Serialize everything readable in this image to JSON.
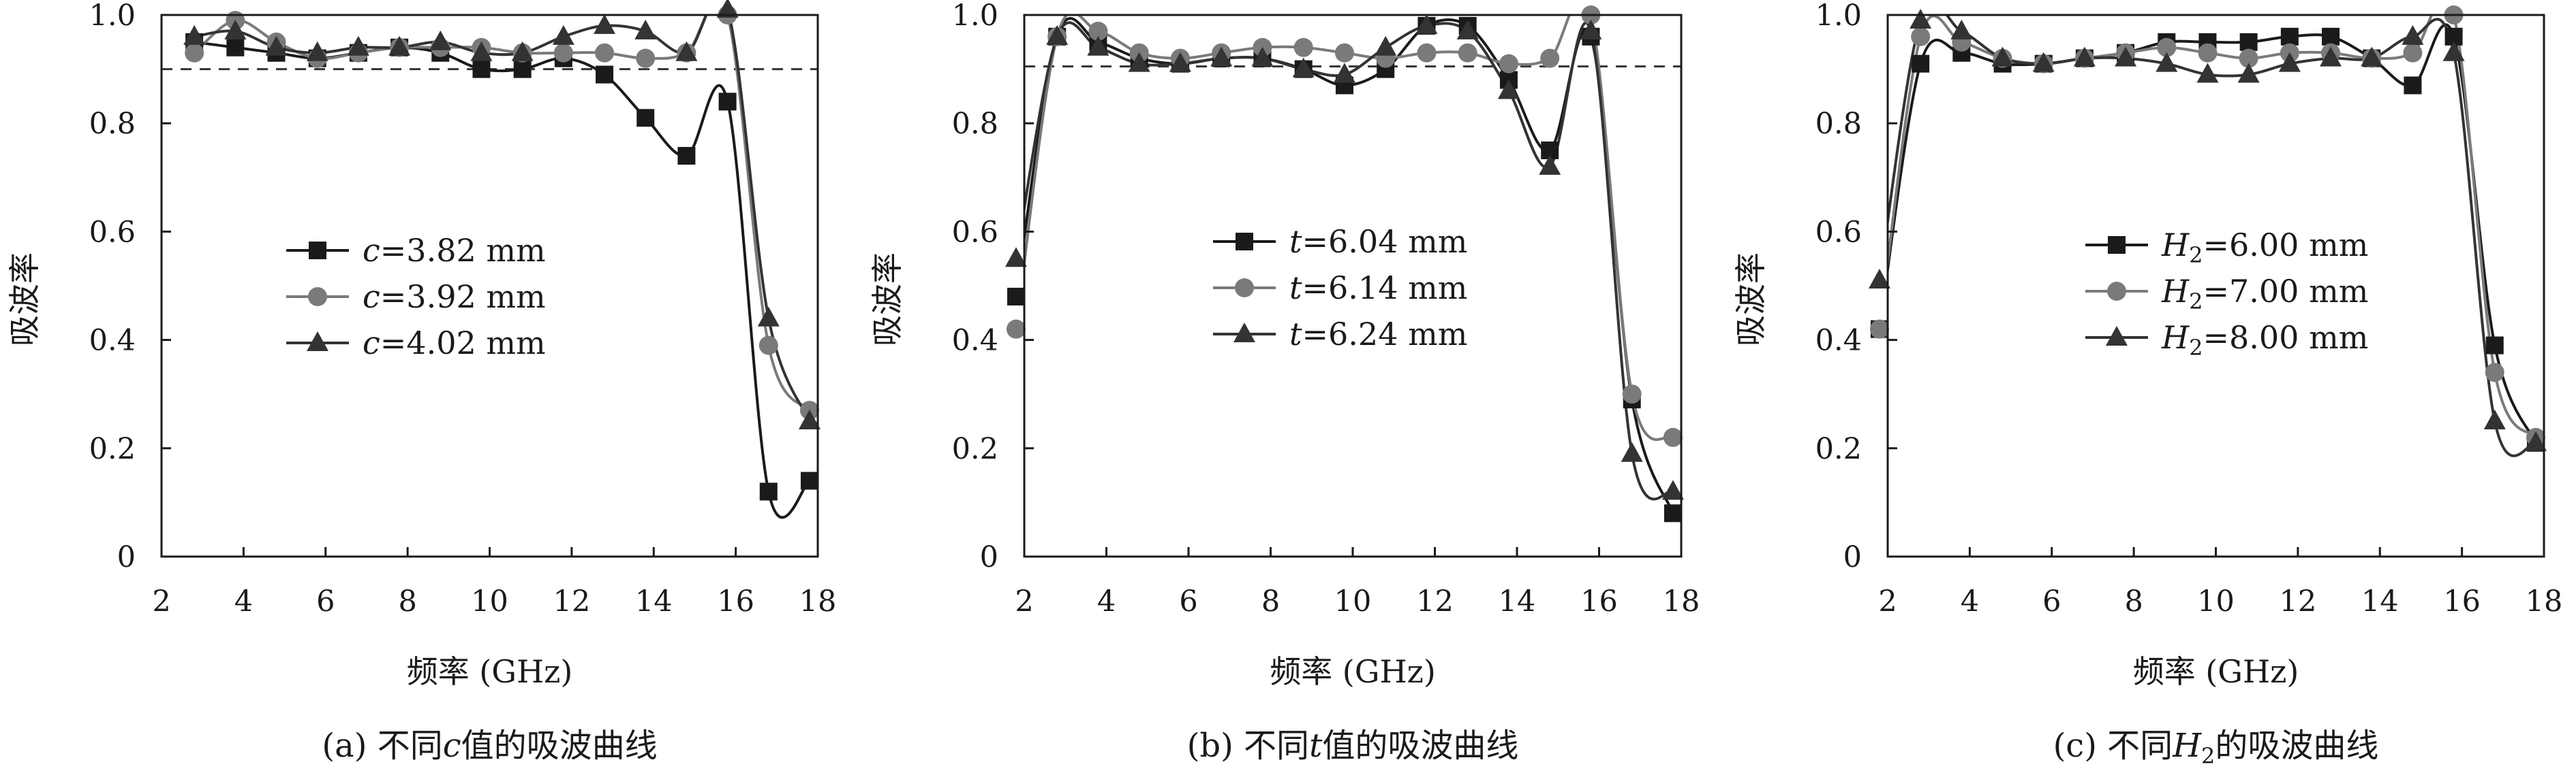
{
  "chart_data": [
    {
      "type": "line",
      "caption": {
        "prefix": "(a) 不同",
        "var": "c",
        "sub": "",
        "suffix": "值的吸波曲线"
      },
      "xlabel": "频率 (GHz)",
      "ylabel": "吸波率",
      "xlim": [
        2,
        18
      ],
      "ylim": [
        0,
        1.0
      ],
      "xticks": [
        "2",
        "4",
        "6",
        "8",
        "10",
        "12",
        "14",
        "16",
        "18"
      ],
      "yticks": [
        "0",
        "0.2",
        "0.4",
        "0.6",
        "0.8",
        "1.0"
      ],
      "reference_line": 0.9,
      "legend_position": "center-left",
      "series": [
        {
          "name": "c=3.82 mm",
          "var": "c",
          "sub": "",
          "value": "=3.82 mm",
          "marker": "square",
          "color": "#1a1a1a",
          "x": [
            2.8,
            3.8,
            4.8,
            5.8,
            6.8,
            7.8,
            8.8,
            9.8,
            10.8,
            11.8,
            12.8,
            13.8,
            14.8,
            15.8,
            16.8,
            17.8
          ],
          "y": [
            0.95,
            0.94,
            0.93,
            0.92,
            0.93,
            0.94,
            0.93,
            0.9,
            0.9,
            0.92,
            0.89,
            0.81,
            0.74,
            0.84,
            0.12,
            0.14
          ]
        },
        {
          "name": "c=3.92 mm",
          "var": "c",
          "sub": "",
          "value": "=3.92 mm",
          "marker": "circle",
          "color": "#7a7a7a",
          "x": [
            2.8,
            3.8,
            4.8,
            5.8,
            6.8,
            7.8,
            8.8,
            9.8,
            10.8,
            11.8,
            12.8,
            13.8,
            14.8,
            15.8,
            16.8,
            17.8
          ],
          "y": [
            0.93,
            0.99,
            0.95,
            0.92,
            0.93,
            0.94,
            0.94,
            0.94,
            0.93,
            0.93,
            0.93,
            0.92,
            0.93,
            1.0,
            0.39,
            0.27
          ]
        },
        {
          "name": "c=4.02 mm",
          "var": "c",
          "sub": "",
          "value": "=4.02 mm",
          "marker": "triangle",
          "color": "#333333",
          "x": [
            2.8,
            3.8,
            4.8,
            5.8,
            6.8,
            7.8,
            8.8,
            9.8,
            10.8,
            11.8,
            12.8,
            13.8,
            14.8,
            15.8,
            16.8,
            17.8
          ],
          "y": [
            0.96,
            0.97,
            0.94,
            0.93,
            0.94,
            0.94,
            0.95,
            0.93,
            0.93,
            0.96,
            0.98,
            0.97,
            0.93,
            1.01,
            0.44,
            0.25
          ]
        }
      ]
    },
    {
      "type": "line",
      "caption": {
        "prefix": "(b) 不同",
        "var": "t",
        "sub": "",
        "suffix": "值的吸波曲线"
      },
      "xlabel": "频率 (GHz)",
      "ylabel": "吸波率",
      "xlim": [
        2,
        18
      ],
      "ylim": [
        0,
        1.0
      ],
      "xticks": [
        "2",
        "4",
        "6",
        "8",
        "10",
        "12",
        "14",
        "16",
        "18"
      ],
      "yticks": [
        "0",
        "0.2",
        "0.4",
        "0.6",
        "0.8",
        "1.0"
      ],
      "reference_line": 0.905,
      "legend_position": "center-left",
      "series": [
        {
          "name": "t=6.04 mm",
          "var": "t",
          "sub": "",
          "value": "=6.04 mm",
          "marker": "square",
          "color": "#1a1a1a",
          "x": [
            1.8,
            2.8,
            3.8,
            4.8,
            5.8,
            6.8,
            7.8,
            8.8,
            9.8,
            10.8,
            11.8,
            12.8,
            13.8,
            14.8,
            15.8,
            16.8,
            17.8
          ],
          "y": [
            0.48,
            0.96,
            0.95,
            0.92,
            0.91,
            0.92,
            0.92,
            0.9,
            0.87,
            0.9,
            0.98,
            0.98,
            0.88,
            0.75,
            0.96,
            0.29,
            0.08
          ]
        },
        {
          "name": "t=6.14 mm",
          "var": "t",
          "sub": "",
          "value": "=6.14 mm",
          "marker": "circle",
          "color": "#7a7a7a",
          "x": [
            1.8,
            2.8,
            3.8,
            4.8,
            5.8,
            6.8,
            7.8,
            8.8,
            9.8,
            10.8,
            11.8,
            12.8,
            13.8,
            14.8,
            15.8,
            16.8,
            17.8
          ],
          "y": [
            0.42,
            0.96,
            0.97,
            0.93,
            0.92,
            0.93,
            0.94,
            0.94,
            0.93,
            0.92,
            0.93,
            0.93,
            0.91,
            0.92,
            1.0,
            0.3,
            0.22
          ]
        },
        {
          "name": "t=6.24 mm",
          "var": "t",
          "sub": "",
          "value": "=6.24 mm",
          "marker": "triangle",
          "color": "#333333",
          "x": [
            1.8,
            2.8,
            3.8,
            4.8,
            5.8,
            6.8,
            7.8,
            8.8,
            9.8,
            10.8,
            11.8,
            12.8,
            13.8,
            14.8,
            15.8,
            16.8,
            17.8
          ],
          "y": [
            0.55,
            0.96,
            0.94,
            0.91,
            0.91,
            0.92,
            0.92,
            0.9,
            0.89,
            0.94,
            0.98,
            0.97,
            0.86,
            0.72,
            0.97,
            0.19,
            0.12
          ]
        }
      ]
    },
    {
      "type": "line",
      "caption": {
        "prefix": "(c) 不同",
        "var": "H",
        "sub": "2",
        "suffix": "的吸波曲线"
      },
      "xlabel": "频率 (GHz)",
      "ylabel": "吸波率",
      "xlim": [
        2,
        18
      ],
      "ylim": [
        0,
        1.0
      ],
      "xticks": [
        "2",
        "4",
        "6",
        "8",
        "10",
        "12",
        "14",
        "16",
        "18"
      ],
      "yticks": [
        "0",
        "0.2",
        "0.4",
        "0.6",
        "0.8",
        "1.0"
      ],
      "reference_line": null,
      "legend_position": "center-right",
      "series": [
        {
          "name": "H2=6.00 mm",
          "var": "H",
          "sub": "2",
          "value": "=6.00 mm",
          "marker": "square",
          "color": "#1a1a1a",
          "x": [
            1.8,
            2.8,
            3.8,
            4.8,
            5.8,
            6.8,
            7.8,
            8.8,
            9.8,
            10.8,
            11.8,
            12.8,
            13.8,
            14.8,
            15.8,
            16.8,
            17.8
          ],
          "y": [
            0.42,
            0.91,
            0.93,
            0.91,
            0.91,
            0.92,
            0.93,
            0.95,
            0.95,
            0.95,
            0.96,
            0.96,
            0.92,
            0.87,
            0.96,
            0.39,
            0.21
          ]
        },
        {
          "name": "H2=7.00 mm",
          "var": "H",
          "sub": "2",
          "value": "=7.00 mm",
          "marker": "circle",
          "color": "#7a7a7a",
          "x": [
            1.8,
            2.8,
            3.8,
            4.8,
            5.8,
            6.8,
            7.8,
            8.8,
            9.8,
            10.8,
            11.8,
            12.8,
            13.8,
            14.8,
            15.8,
            16.8,
            17.8
          ],
          "y": [
            0.42,
            0.96,
            0.95,
            0.92,
            0.91,
            0.92,
            0.93,
            0.94,
            0.93,
            0.92,
            0.93,
            0.93,
            0.92,
            0.93,
            1.0,
            0.34,
            0.22
          ]
        },
        {
          "name": "H2=8.00 mm",
          "var": "H",
          "sub": "2",
          "value": "=8.00 mm",
          "marker": "triangle",
          "color": "#333333",
          "x": [
            1.8,
            2.8,
            3.8,
            4.8,
            5.8,
            6.8,
            7.8,
            8.8,
            9.8,
            10.8,
            11.8,
            12.8,
            13.8,
            14.8,
            15.8,
            16.8,
            17.8
          ],
          "y": [
            0.51,
            0.99,
            0.97,
            0.92,
            0.91,
            0.92,
            0.92,
            0.91,
            0.89,
            0.89,
            0.91,
            0.92,
            0.92,
            0.96,
            0.93,
            0.25,
            0.21
          ]
        }
      ]
    }
  ]
}
